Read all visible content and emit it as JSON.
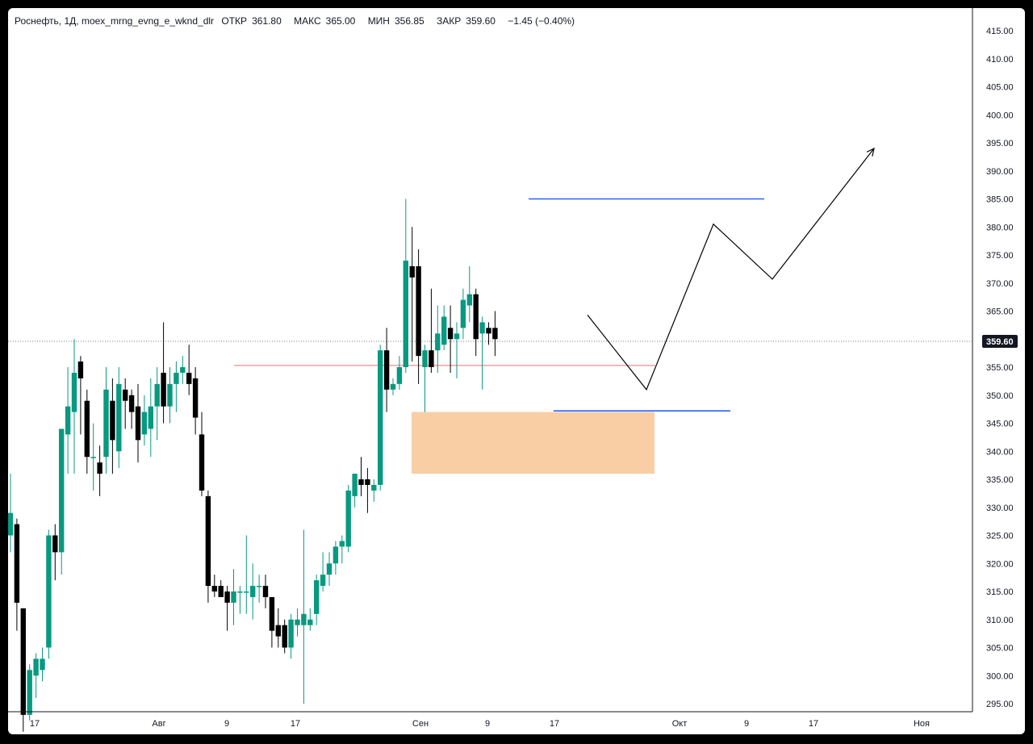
{
  "legend": {
    "symbol": "Роснефть, 1Д, moex_mrng_evng_e_wknd_dlr",
    "open_label": "ОТКР",
    "open": "361.80",
    "high_label": "МАКС",
    "high": "365.00",
    "low_label": "МИН",
    "low": "356.85",
    "close_label": "ЗАКР",
    "close": "359.60",
    "change": "−1.45 (−0.40%)"
  },
  "last_price_tag": "359.60",
  "colors": {
    "up": "#089981",
    "down": "#000000",
    "hline_blue": "#2962ff",
    "hline_red": "#e57373",
    "zone": "#f8c99a",
    "projection": "#000000",
    "grid_axis": "#131722"
  },
  "chart_data": {
    "type": "candlestick",
    "ylim": [
      293,
      419
    ],
    "y_ticks": [
      "295.00",
      "300.00",
      "305.00",
      "310.00",
      "315.00",
      "320.00",
      "325.00",
      "330.00",
      "335.00",
      "340.00",
      "345.00",
      "350.00",
      "355.00",
      "360.00",
      "365.00",
      "370.00",
      "375.00",
      "380.00",
      "385.00",
      "390.00",
      "395.00",
      "400.00",
      "405.00",
      "410.00",
      "415.00"
    ],
    "x_ticks": [
      "17",
      "Авг",
      "9",
      "17",
      "Сен",
      "9",
      "17",
      "Окт",
      "9",
      "17",
      "Ноя"
    ],
    "last_price": 359.6,
    "candles": [
      {
        "o": 325,
        "h": 336,
        "l": 322,
        "c": 329
      },
      {
        "o": 327,
        "h": 328,
        "l": 308,
        "c": 313
      },
      {
        "o": 312,
        "h": 312,
        "l": 290,
        "c": 293
      },
      {
        "o": 293,
        "h": 302,
        "l": 292,
        "c": 301
      },
      {
        "o": 300,
        "h": 304,
        "l": 296,
        "c": 303
      },
      {
        "o": 301,
        "h": 305,
        "l": 299,
        "c": 303
      },
      {
        "o": 305,
        "h": 326,
        "l": 303,
        "c": 325
      },
      {
        "o": 325,
        "h": 327,
        "l": 317,
        "c": 322
      },
      {
        "o": 322,
        "h": 344,
        "l": 318,
        "c": 344
      },
      {
        "o": 343,
        "h": 355,
        "l": 336,
        "c": 348
      },
      {
        "o": 347,
        "h": 360,
        "l": 336,
        "c": 354
      },
      {
        "o": 356,
        "h": 357,
        "l": 343,
        "c": 353
      },
      {
        "o": 349,
        "h": 351,
        "l": 336,
        "c": 339
      },
      {
        "o": 339,
        "h": 345,
        "l": 333,
        "c": 339
      },
      {
        "o": 338,
        "h": 341,
        "l": 332,
        "c": 336
      },
      {
        "o": 339,
        "h": 355,
        "l": 336,
        "c": 351
      },
      {
        "o": 349,
        "h": 353,
        "l": 336,
        "c": 342
      },
      {
        "o": 340,
        "h": 355,
        "l": 337,
        "c": 352
      },
      {
        "o": 351,
        "h": 353,
        "l": 344,
        "c": 349
      },
      {
        "o": 350,
        "h": 351,
        "l": 344,
        "c": 347
      },
      {
        "o": 348,
        "h": 352,
        "l": 338,
        "c": 342
      },
      {
        "o": 343,
        "h": 350,
        "l": 341,
        "c": 347
      },
      {
        "o": 344,
        "h": 353,
        "l": 339,
        "c": 348
      },
      {
        "o": 348,
        "h": 355,
        "l": 342,
        "c": 352
      },
      {
        "o": 354,
        "h": 363,
        "l": 345,
        "c": 348
      },
      {
        "o": 348,
        "h": 355,
        "l": 345,
        "c": 352
      },
      {
        "o": 352,
        "h": 356,
        "l": 347,
        "c": 354
      },
      {
        "o": 354,
        "h": 357,
        "l": 352,
        "c": 355
      },
      {
        "o": 354,
        "h": 359,
        "l": 350,
        "c": 352
      },
      {
        "o": 353,
        "h": 355,
        "l": 343,
        "c": 346
      },
      {
        "o": 343,
        "h": 347,
        "l": 332,
        "c": 333
      },
      {
        "o": 332,
        "h": 333,
        "l": 313,
        "c": 316
      },
      {
        "o": 316,
        "h": 318,
        "l": 314,
        "c": 315
      },
      {
        "o": 316,
        "h": 317,
        "l": 314,
        "c": 314
      },
      {
        "o": 315,
        "h": 316,
        "l": 308,
        "c": 313
      },
      {
        "o": 313,
        "h": 319,
        "l": 309,
        "c": 315
      },
      {
        "o": 315,
        "h": 316,
        "l": 311,
        "c": 315
      },
      {
        "o": 315,
        "h": 325,
        "l": 311,
        "c": 315
      },
      {
        "o": 314,
        "h": 320,
        "l": 310,
        "c": 316
      },
      {
        "o": 316,
        "h": 318,
        "l": 313,
        "c": 316
      },
      {
        "o": 316,
        "h": 318,
        "l": 312,
        "c": 314
      },
      {
        "o": 314,
        "h": 314,
        "l": 305,
        "c": 308
      },
      {
        "o": 309,
        "h": 312,
        "l": 305,
        "c": 307
      },
      {
        "o": 309,
        "h": 310,
        "l": 304,
        "c": 305
      },
      {
        "o": 305,
        "h": 311,
        "l": 303,
        "c": 310
      },
      {
        "o": 309,
        "h": 312,
        "l": 307,
        "c": 310
      },
      {
        "o": 309,
        "h": 326,
        "l": 295,
        "c": 311
      },
      {
        "o": 309,
        "h": 312,
        "l": 308,
        "c": 310
      },
      {
        "o": 311,
        "h": 318,
        "l": 309,
        "c": 317
      },
      {
        "o": 316,
        "h": 322,
        "l": 315,
        "c": 318
      },
      {
        "o": 318,
        "h": 322,
        "l": 316,
        "c": 320
      },
      {
        "o": 320,
        "h": 324,
        "l": 318,
        "c": 323
      },
      {
        "o": 323,
        "h": 325,
        "l": 320,
        "c": 324
      },
      {
        "o": 323,
        "h": 334,
        "l": 322,
        "c": 333
      },
      {
        "o": 332,
        "h": 336,
        "l": 330,
        "c": 336
      },
      {
        "o": 335,
        "h": 339,
        "l": 332,
        "c": 334
      },
      {
        "o": 335,
        "h": 337,
        "l": 329,
        "c": 334
      },
      {
        "o": 333,
        "h": 335,
        "l": 331,
        "c": 334
      },
      {
        "o": 334,
        "h": 359,
        "l": 333,
        "c": 358
      },
      {
        "o": 358,
        "h": 362,
        "l": 347,
        "c": 351
      },
      {
        "o": 351,
        "h": 353,
        "l": 350,
        "c": 352
      },
      {
        "o": 352,
        "h": 357,
        "l": 351,
        "c": 355
      },
      {
        "o": 355,
        "h": 385,
        "l": 354,
        "c": 374
      },
      {
        "o": 373,
        "h": 380,
        "l": 356,
        "c": 371
      },
      {
        "o": 373,
        "h": 376,
        "l": 352,
        "c": 357
      },
      {
        "o": 355,
        "h": 359,
        "l": 347,
        "c": 358
      },
      {
        "o": 358,
        "h": 369,
        "l": 354,
        "c": 355
      },
      {
        "o": 358,
        "h": 366,
        "l": 354,
        "c": 361
      },
      {
        "o": 359,
        "h": 366,
        "l": 358,
        "c": 364
      },
      {
        "o": 362,
        "h": 366,
        "l": 354,
        "c": 360
      },
      {
        "o": 360,
        "h": 363,
        "l": 353,
        "c": 361
      },
      {
        "o": 362,
        "h": 369,
        "l": 360,
        "c": 367
      },
      {
        "o": 366,
        "h": 373,
        "l": 363,
        "c": 368
      },
      {
        "o": 368,
        "h": 369,
        "l": 357,
        "c": 360
      },
      {
        "o": 361,
        "h": 364,
        "l": 351,
        "c": 363
      },
      {
        "o": 362,
        "h": 363,
        "l": 359,
        "c": 361
      },
      {
        "o": 362,
        "h": 365,
        "l": 357,
        "c": 360
      }
    ],
    "drawings": {
      "resistance_line": 385,
      "support_line": 347.2,
      "red_line": 355.3,
      "zone": [
        336,
        347
      ],
      "projection": [
        [
          364.5,
          351
        ],
        [
          380.5,
          370.7
        ],
        [
          394,
          394
        ]
      ]
    }
  }
}
